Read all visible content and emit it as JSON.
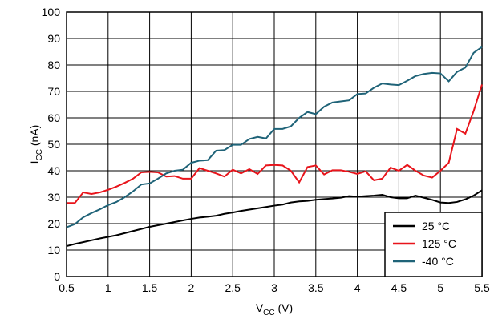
{
  "chart_data": {
    "type": "line",
    "xlabel": {
      "main": "V",
      "sub": "CC",
      "unit": " (V)"
    },
    "ylabel": {
      "main": "I",
      "sub": "CC",
      "unit": " (nA)"
    },
    "x": [
      0.5,
      0.6,
      0.7,
      0.8,
      0.9,
      1.0,
      1.1,
      1.2,
      1.3,
      1.4,
      1.5,
      1.6,
      1.7,
      1.8,
      1.9,
      2.0,
      2.1,
      2.2,
      2.3,
      2.4,
      2.5,
      2.6,
      2.7,
      2.8,
      2.9,
      3.0,
      3.1,
      3.2,
      3.3,
      3.4,
      3.5,
      3.6,
      3.7,
      3.8,
      3.9,
      4.0,
      4.1,
      4.2,
      4.3,
      4.4,
      4.5,
      4.6,
      4.7,
      4.8,
      4.9,
      5.0,
      5.1,
      5.2,
      5.3,
      5.4,
      5.5
    ],
    "series": [
      {
        "name": "25 °C",
        "color": "#000000",
        "values": [
          11.5,
          12.3,
          13,
          13.7,
          14.4,
          15,
          15.6,
          16.4,
          17.2,
          18,
          18.8,
          19.4,
          20,
          20.6,
          21.2,
          21.8,
          22.3,
          22.6,
          23,
          23.7,
          24.2,
          24.8,
          25.3,
          25.8,
          26.3,
          26.8,
          27.2,
          28,
          28.4,
          28.6,
          29,
          29.3,
          29.5,
          29.8,
          30.4,
          30.2,
          30.4,
          30.6,
          30.9,
          30,
          29.6,
          29.6,
          30.6,
          29.8,
          29,
          28,
          27.8,
          28.2,
          29.2,
          30.6,
          32.6
        ]
      },
      {
        "name": "125 °C",
        "color": "#e8141b",
        "values": [
          27.8,
          27.8,
          31.8,
          31.2,
          31.8,
          32.8,
          34,
          35.4,
          37,
          39.4,
          39.6,
          39.4,
          37.8,
          38,
          37,
          37,
          41,
          40,
          39,
          37.8,
          40.4,
          39,
          40.6,
          38.8,
          42,
          42.2,
          42,
          40,
          35.6,
          41.4,
          42,
          38.6,
          40.2,
          40.2,
          39.6,
          38.8,
          39.8,
          36.4,
          37,
          41.2,
          40,
          42.2,
          40,
          38.2,
          37.4,
          40,
          43,
          55.8,
          54,
          62.6,
          72.6
        ]
      },
      {
        "name": "-40 °C",
        "color": "#1f6378",
        "values": [
          18.6,
          19.8,
          22.4,
          24,
          25.4,
          27,
          28.2,
          30,
          32.2,
          34.8,
          35.2,
          37,
          39,
          40,
          40.4,
          43,
          43.8,
          44,
          47.6,
          47.8,
          49.8,
          49.8,
          52,
          52.8,
          52.2,
          55.8,
          55.8,
          56.8,
          60,
          62.2,
          61.4,
          64.2,
          65.8,
          66.2,
          66.6,
          69,
          69.2,
          71.4,
          73,
          72.6,
          72.4,
          74,
          75.8,
          76.6,
          77,
          76.8,
          73.8,
          77.4,
          79,
          84.6,
          86.8
        ]
      }
    ],
    "xlim": [
      0.5,
      5.5
    ],
    "xticks": [
      0.5,
      1,
      1.5,
      2,
      2.5,
      3,
      3.5,
      4,
      4.5,
      5,
      5.5
    ],
    "ylim": [
      0,
      100
    ],
    "yticks": [
      0,
      10,
      20,
      30,
      40,
      50,
      60,
      70,
      80,
      90,
      100
    ],
    "grid": true,
    "legend": "lower right"
  }
}
